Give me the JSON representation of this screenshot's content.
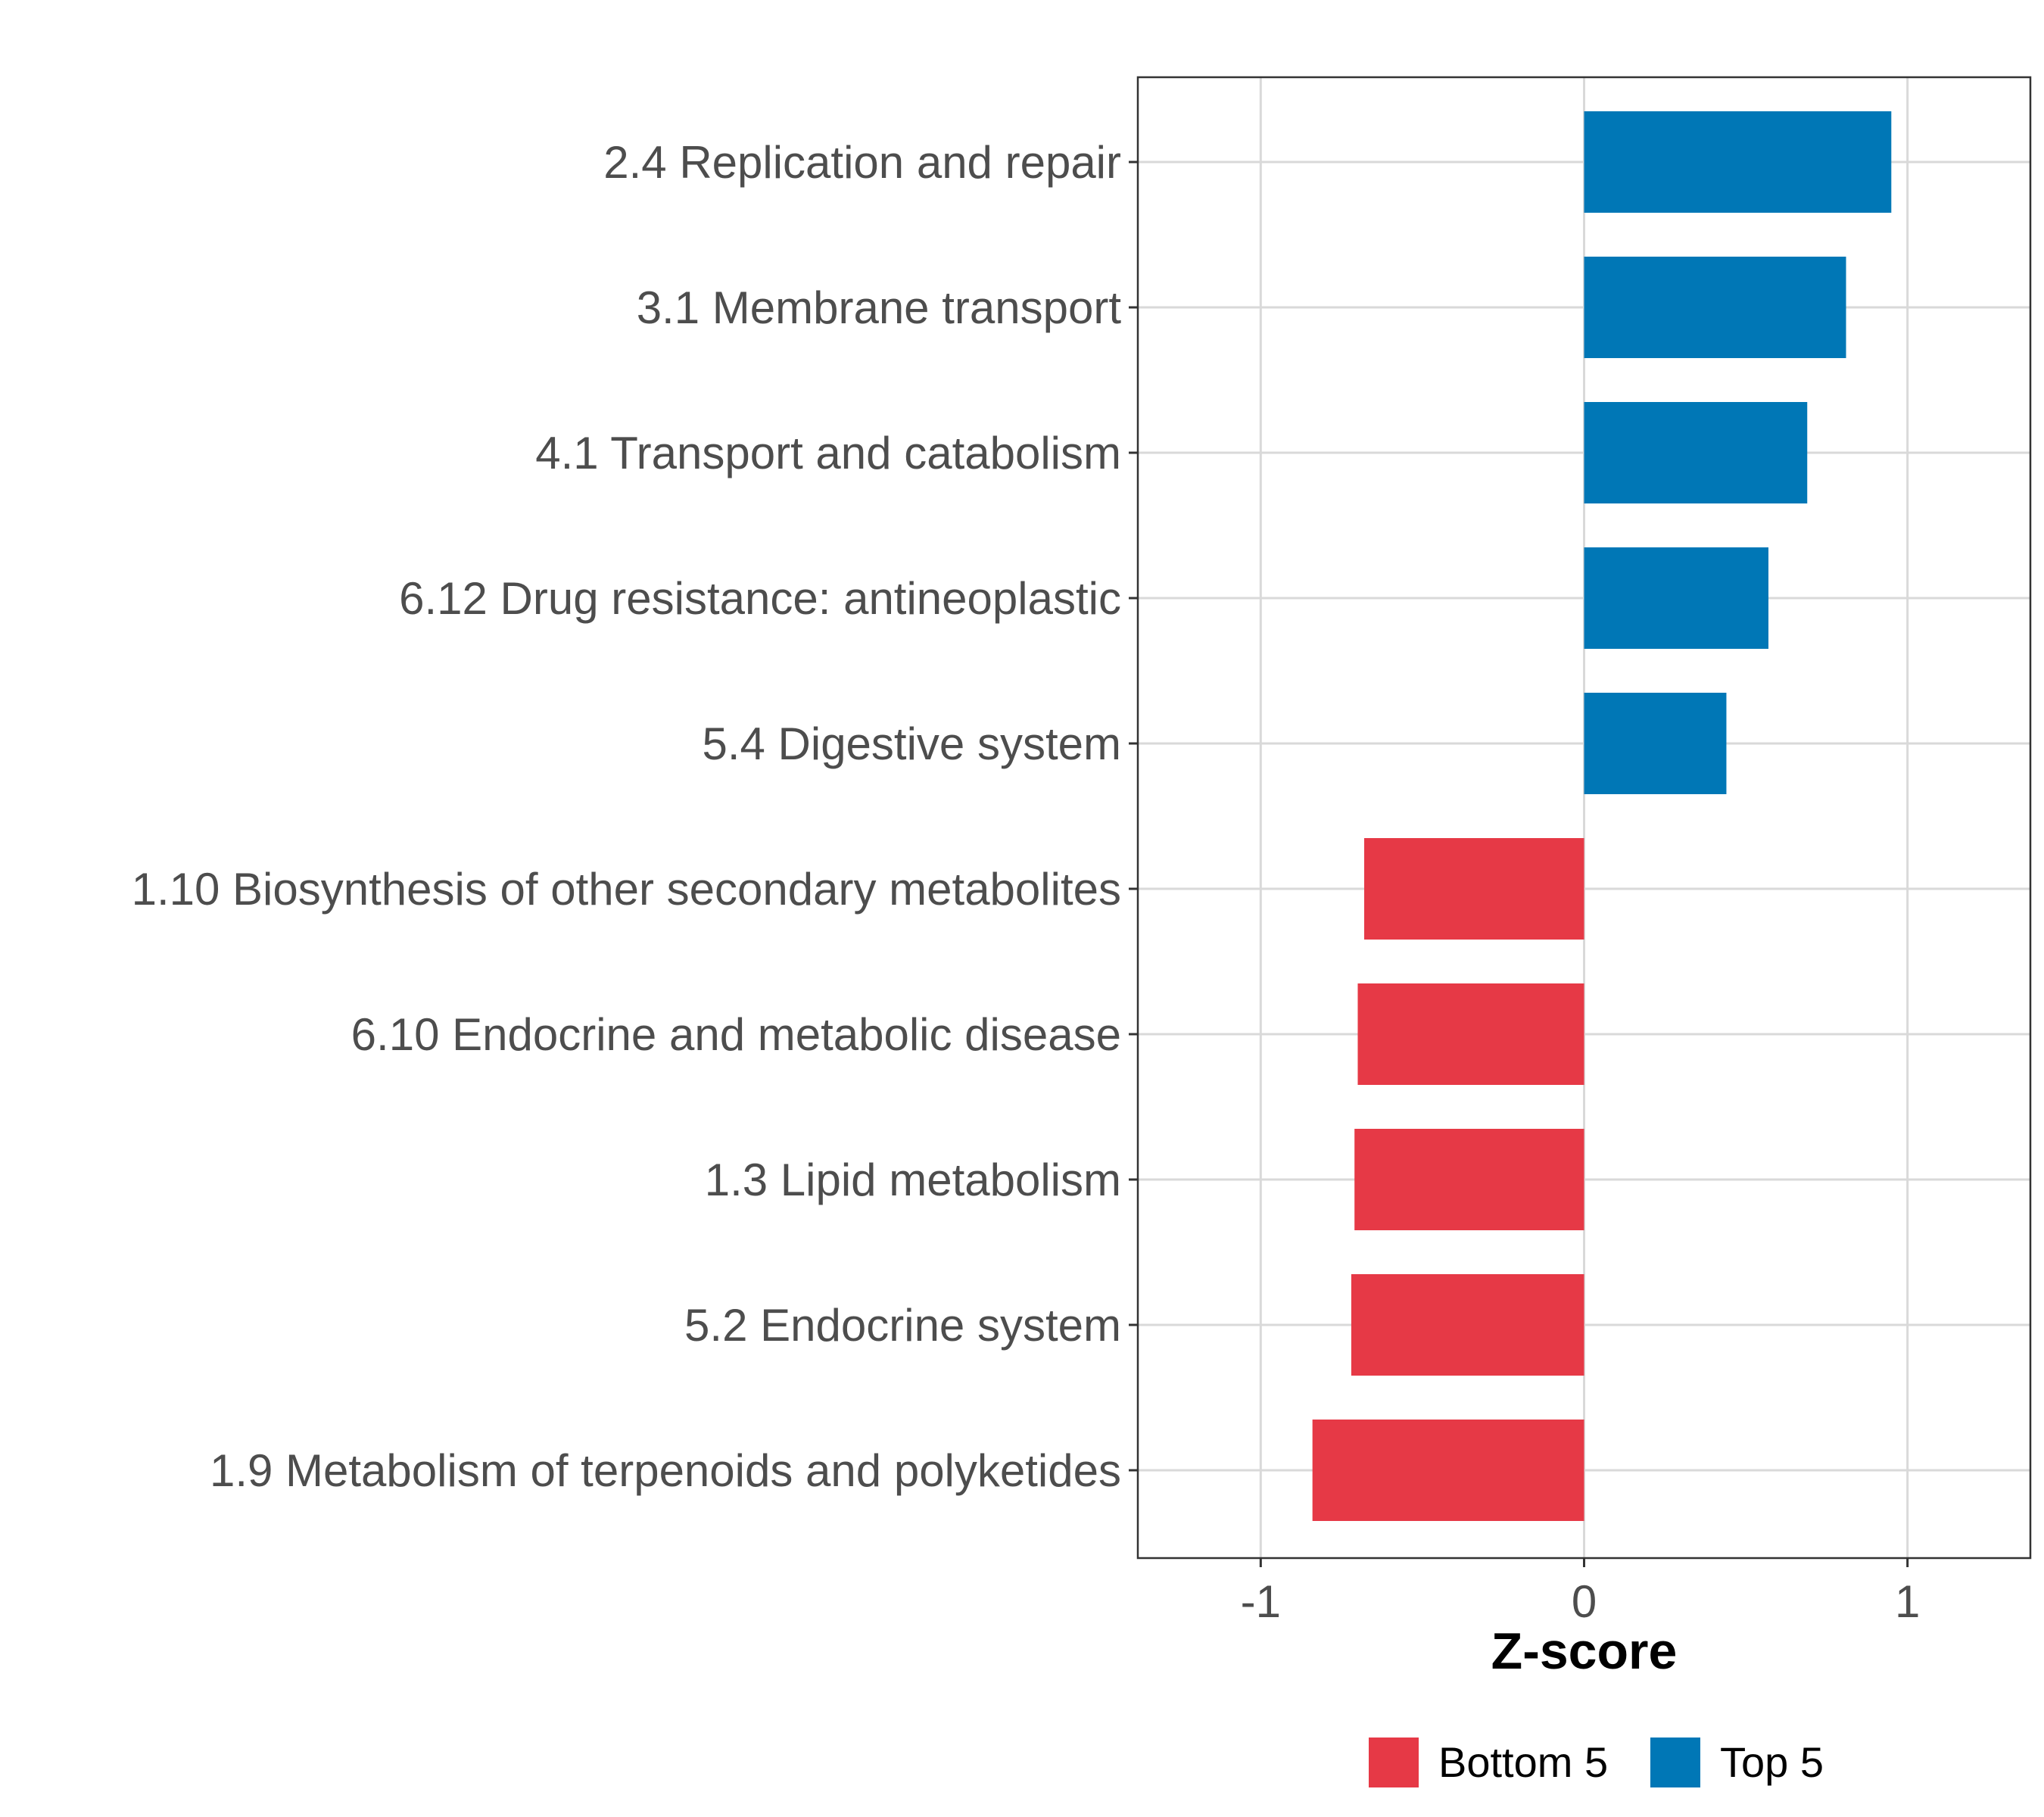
{
  "chart_data": {
    "type": "bar",
    "orientation": "horizontal",
    "categories": [
      "2.4 Replication and repair",
      "3.1 Membrane transport",
      "4.1 Transport and catabolism",
      "6.12 Drug resistance: antineoplastic",
      "5.4 Digestive system",
      "1.10 Biosynthesis of other secondary metabolites",
      "6.10 Endocrine and metabolic disease",
      "1.3 Lipid metabolism",
      "5.2 Endocrine system",
      "1.9 Metabolism of terpenoids and polyketides"
    ],
    "values": [
      0.95,
      0.81,
      0.69,
      0.57,
      0.44,
      -0.68,
      -0.7,
      -0.71,
      -0.72,
      -0.84
    ],
    "groups": [
      "Top 5",
      "Top 5",
      "Top 5",
      "Top 5",
      "Top 5",
      "Bottom 5",
      "Bottom 5",
      "Bottom 5",
      "Bottom 5",
      "Bottom 5"
    ],
    "xlabel": "Z-score",
    "ylabel": "",
    "xlim": [
      -1.38,
      1.38
    ],
    "xticks": [
      -1,
      0,
      1
    ],
    "xtick_labels": [
      "-1",
      "0",
      "1"
    ],
    "grid": true,
    "legend": {
      "position": "bottom",
      "entries": [
        {
          "label": "Bottom 5",
          "color": "#e63946"
        },
        {
          "label": "Top 5",
          "color": "#0077b6"
        }
      ]
    }
  }
}
